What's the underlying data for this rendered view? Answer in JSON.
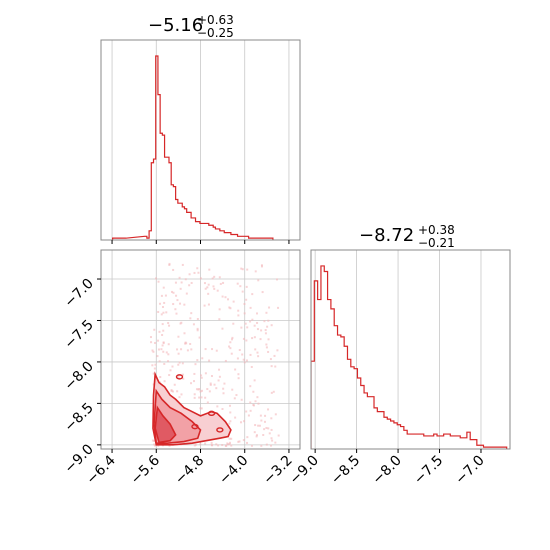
{
  "chart_data": {
    "type": "corner",
    "color": "#d62728",
    "fill_color": "#f2a1a6",
    "grid": true,
    "parameters": [
      {
        "title": "−5.16",
        "title_upper": "+0.63",
        "title_lower": "−0.25",
        "range": [
          -6.6,
          -3.0
        ],
        "ticks": [
          -6.4,
          -5.6,
          -4.8,
          -4.0,
          -3.2
        ],
        "tick_labels": [
          "−6.4",
          "−5.6",
          "−4.8",
          "−4.0",
          "−3.2"
        ]
      },
      {
        "title": "−8.72",
        "title_upper": "+0.38",
        "title_lower": "−0.21",
        "range": [
          -9.05,
          -6.65
        ],
        "ticks": [
          -9.0,
          -8.5,
          -8.0,
          -7.5,
          -7.0
        ],
        "tick_labels": [
          "−9.0",
          "−8.5",
          "−8.0",
          "−7.5",
          "−7.0"
        ]
      }
    ],
    "hist_1": {
      "x": [
        -6.37,
        -6.17,
        -5.79,
        -5.75,
        -5.71,
        -5.67,
        -5.63,
        -5.59,
        -5.55,
        -5.51,
        -5.47,
        -5.43,
        -5.39,
        -5.35,
        -5.31,
        -5.27,
        -5.23,
        -5.19,
        -5.15,
        -5.11,
        -5.07,
        -5.03,
        -4.99,
        -4.95,
        -4.91,
        -4.87,
        -4.83,
        -4.79,
        -4.75,
        -4.71,
        -4.67,
        -4.63,
        -4.59,
        -4.55,
        -4.51,
        -4.47,
        -4.43,
        -4.39,
        -4.35,
        -4.31,
        -4.27,
        -4.23,
        -4.19,
        -4.15,
        -4.11,
        -4.07,
        -4.03,
        -3.99,
        -3.95,
        -3.91,
        -3.87,
        -3.83,
        -3.79,
        -3.75,
        -3.71,
        -3.67,
        -3.63,
        -3.59,
        -3.55,
        -3.51
      ],
      "counts": [
        1,
        1,
        2,
        1,
        5,
        42,
        44,
        100,
        79,
        58,
        57,
        45,
        45,
        42,
        30,
        29,
        22,
        20,
        20,
        18,
        17,
        15,
        15,
        12,
        12,
        10,
        10,
        9,
        9,
        9,
        9,
        8,
        8,
        7,
        6,
        6,
        5,
        5,
        4,
        4,
        4,
        3,
        3,
        3,
        2,
        2,
        2,
        2,
        2,
        1,
        1,
        1,
        1,
        1,
        1,
        1,
        1,
        1,
        1,
        1
      ]
    },
    "hist_2": {
      "x": [
        -9.03,
        -8.99,
        -8.95,
        -8.91,
        -8.87,
        -8.83,
        -8.79,
        -8.75,
        -8.71,
        -8.67,
        -8.63,
        -8.59,
        -8.55,
        -8.51,
        -8.47,
        -8.43,
        -8.39,
        -8.35,
        -8.31,
        -8.27,
        -8.23,
        -8.19,
        -8.15,
        -8.11,
        -8.07,
        -8.03,
        -7.99,
        -7.95,
        -7.91,
        -7.87,
        -7.83,
        -7.79,
        -7.75,
        -7.71,
        -7.67,
        -7.63,
        -7.59,
        -7.55,
        -7.51,
        -7.47,
        -7.43,
        -7.39,
        -7.35,
        -7.31,
        -7.27,
        -7.23,
        -7.19,
        -7.15,
        -7.11,
        -7.07,
        -7.03,
        -6.99,
        -6.95,
        -6.91,
        -6.87,
        -6.83,
        -6.79,
        -6.75,
        -6.71
      ],
      "counts": [
        47,
        90,
        80,
        98,
        95,
        80,
        75,
        66,
        61,
        60,
        55,
        48,
        44,
        43,
        38,
        34,
        30,
        28,
        28,
        22,
        20,
        20,
        17,
        16,
        15,
        14,
        13,
        12,
        10,
        8,
        8,
        8,
        8,
        8,
        7,
        7,
        7,
        8,
        7,
        7,
        8,
        8,
        7,
        7,
        7,
        6,
        6,
        9,
        5,
        5,
        2,
        2,
        1,
        1,
        1,
        1,
        1,
        1,
        1
      ]
    }
  }
}
